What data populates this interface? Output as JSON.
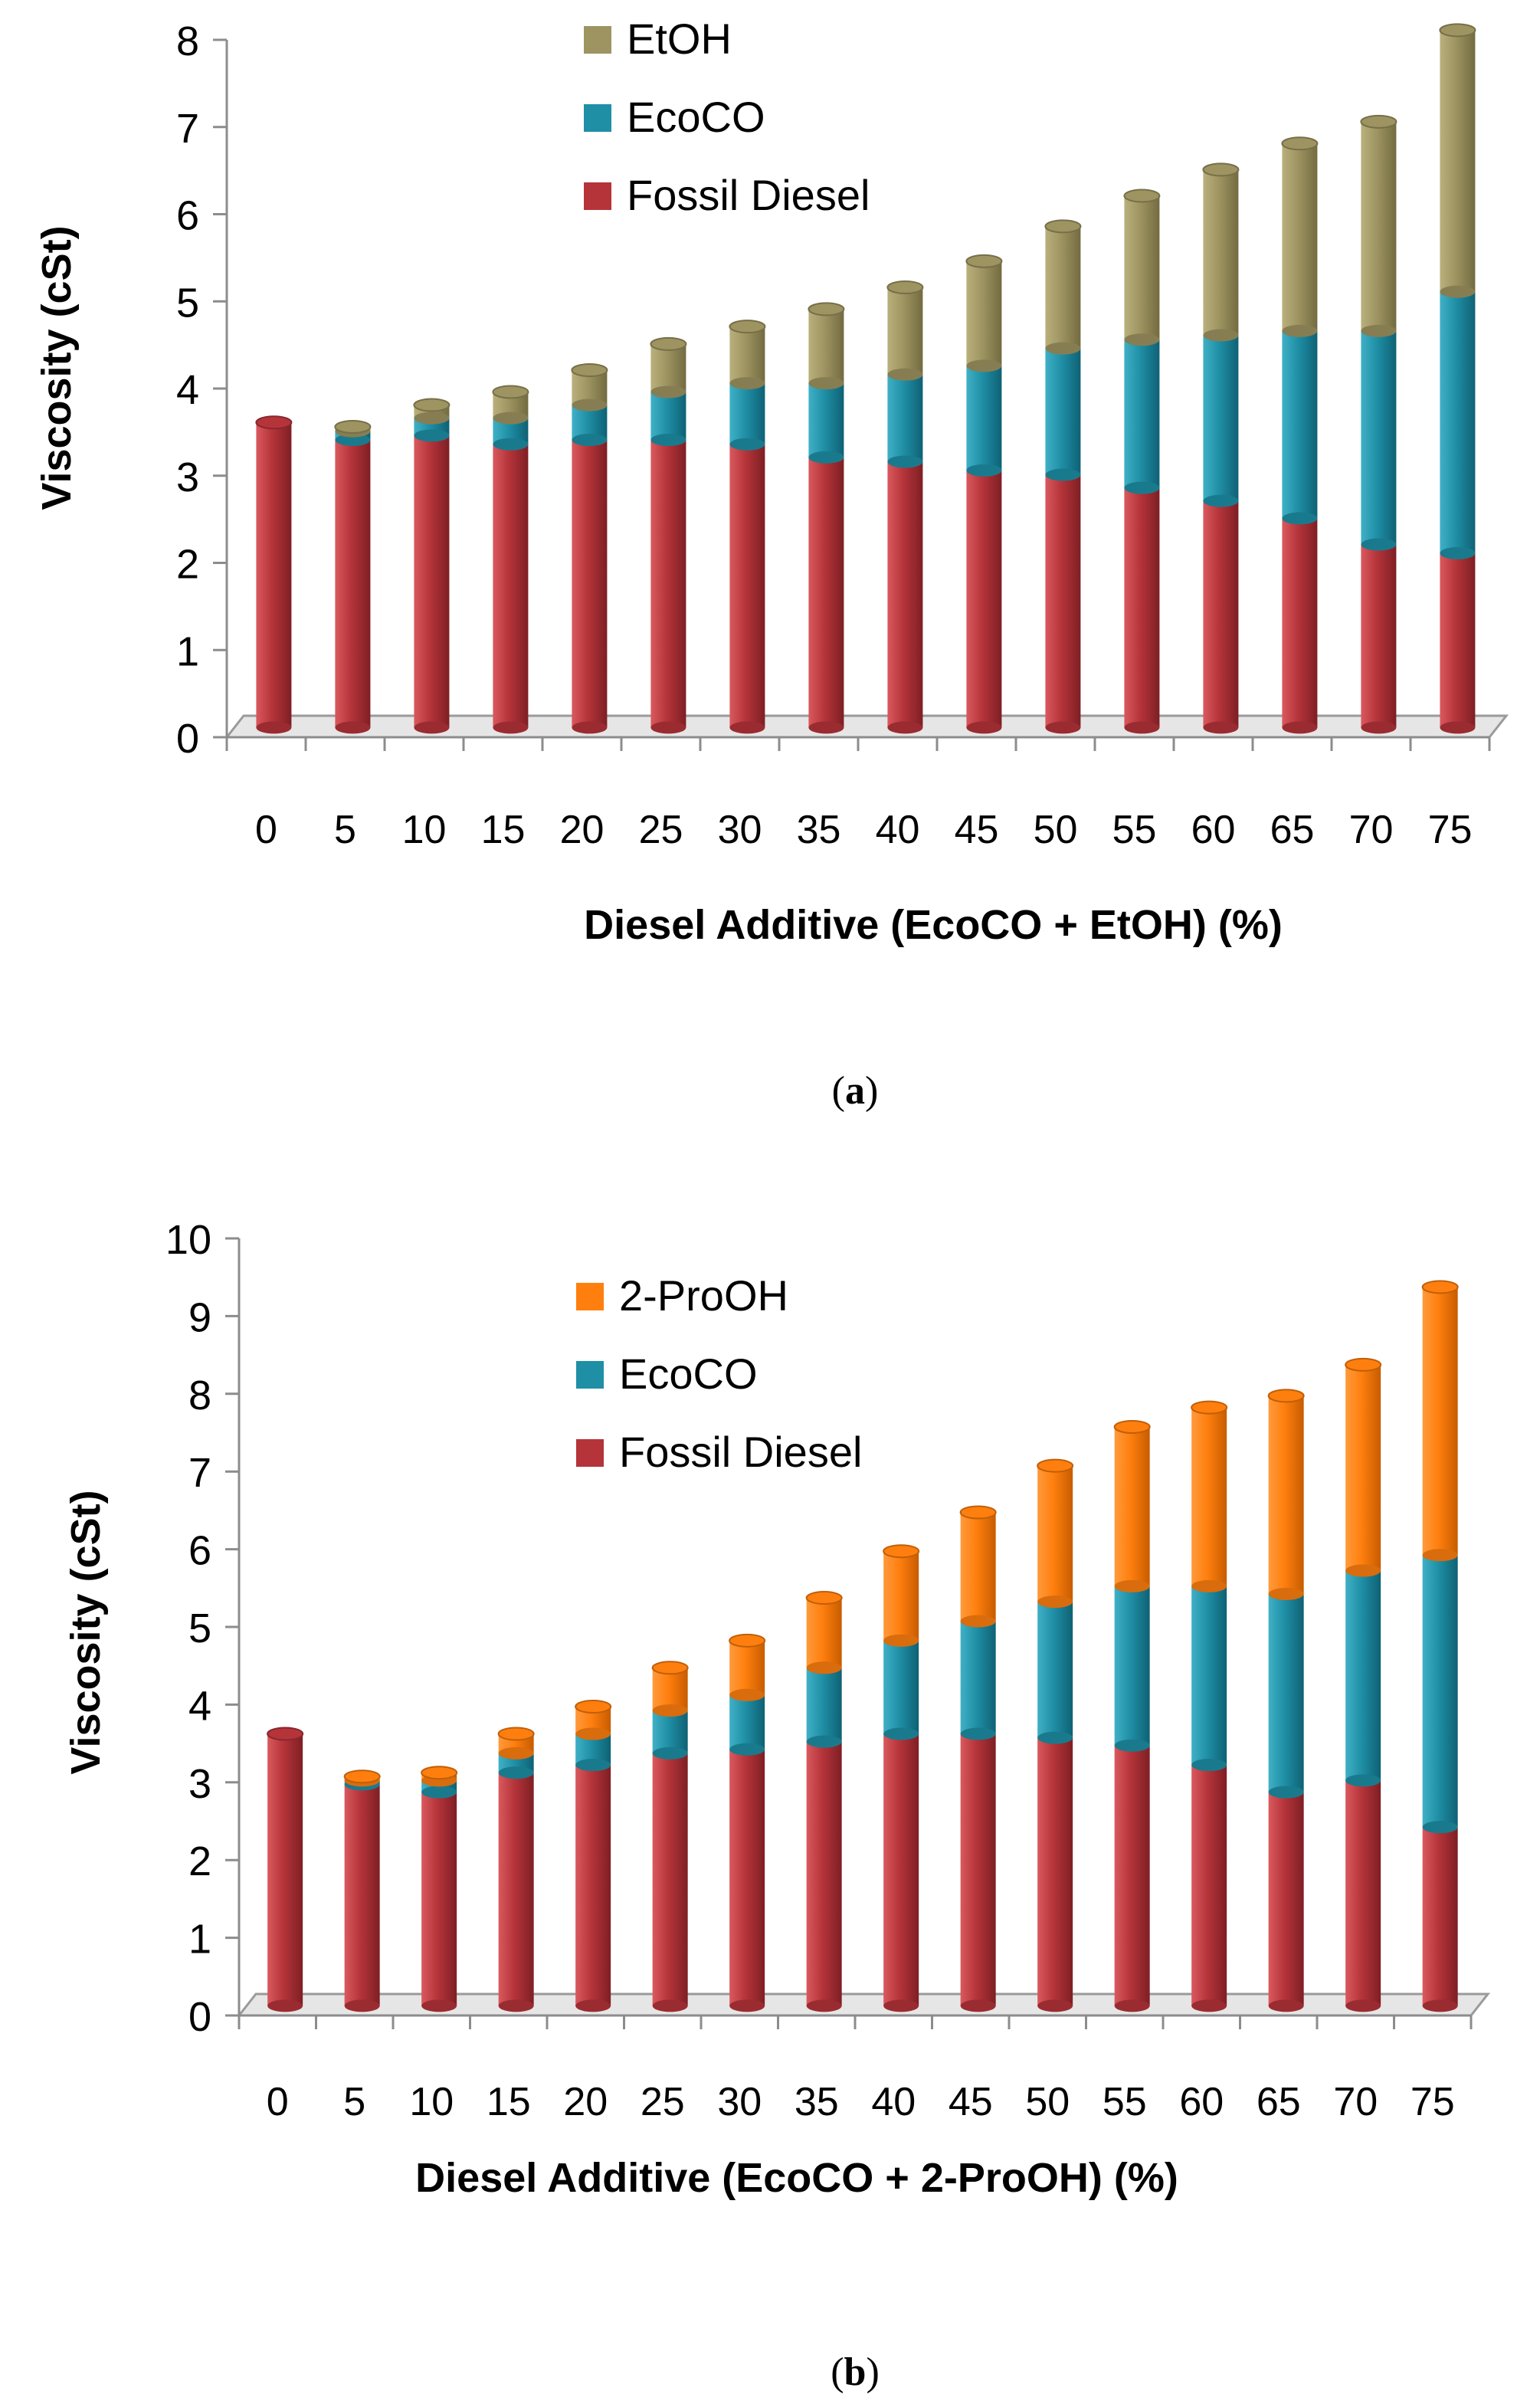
{
  "chart_data": [
    {
      "type": "bar",
      "stacked": true,
      "panel_label": "a",
      "title": "",
      "xlabel": "Diesel Additive (EcoCO + EtOH) (%)",
      "ylabel": "Viscosity (cSt)",
      "ylim": [
        0,
        8
      ],
      "yticks": [
        "0",
        "1",
        "2",
        "3",
        "4",
        "5",
        "6",
        "7",
        "8"
      ],
      "grid": false,
      "legend_position": "top-center",
      "categories": [
        "0",
        "5",
        "10",
        "15",
        "20",
        "25",
        "30",
        "35",
        "40",
        "45",
        "50",
        "55",
        "60",
        "65",
        "70",
        "75"
      ],
      "series": [
        {
          "name": "Fossil Diesel",
          "color": "#b5343a",
          "values": [
            3.5,
            3.3,
            3.35,
            3.25,
            3.3,
            3.3,
            3.25,
            3.1,
            3.05,
            2.95,
            2.9,
            2.75,
            2.6,
            2.4,
            2.1,
            2.0
          ]
        },
        {
          "name": "EcoCO",
          "color": "#1f8fa6",
          "values": [
            0.0,
            0.1,
            0.2,
            0.3,
            0.4,
            0.55,
            0.7,
            0.85,
            1.0,
            1.2,
            1.45,
            1.7,
            1.9,
            2.15,
            2.45,
            3.0
          ]
        },
        {
          "name": "EtOH",
          "color": "#9e9461",
          "values": [
            0.0,
            0.05,
            0.15,
            0.3,
            0.4,
            0.55,
            0.65,
            0.85,
            1.0,
            1.2,
            1.4,
            1.65,
            1.9,
            2.15,
            2.4,
            3.0
          ]
        }
      ]
    },
    {
      "type": "bar",
      "stacked": true,
      "panel_label": "b",
      "title": "",
      "xlabel": "Diesel Additive (EcoCO + 2-ProOH) (%)",
      "ylabel": "Viscosity (cSt)",
      "ylim": [
        0,
        10
      ],
      "yticks": [
        "0",
        "1",
        "2",
        "3",
        "4",
        "5",
        "6",
        "7",
        "8",
        "9",
        "10"
      ],
      "grid": false,
      "legend_position": "top-center",
      "categories": [
        "0",
        "5",
        "10",
        "15",
        "20",
        "25",
        "30",
        "35",
        "40",
        "45",
        "50",
        "55",
        "60",
        "65",
        "70",
        "75"
      ],
      "series": [
        {
          "name": "Fossil Diesel",
          "color": "#b5343a",
          "values": [
            3.5,
            2.85,
            2.75,
            3.0,
            3.1,
            3.25,
            3.3,
            3.4,
            3.5,
            3.5,
            3.45,
            3.35,
            3.1,
            2.75,
            2.9,
            2.3
          ]
        },
        {
          "name": "EcoCO",
          "color": "#1f8fa6",
          "values": [
            0.0,
            0.05,
            0.15,
            0.25,
            0.4,
            0.55,
            0.7,
            0.95,
            1.2,
            1.45,
            1.75,
            2.05,
            2.3,
            2.55,
            2.7,
            3.5
          ]
        },
        {
          "name": "2-ProOH",
          "color": "#ff7f0e",
          "values": [
            0.0,
            0.05,
            0.1,
            0.25,
            0.35,
            0.55,
            0.7,
            0.9,
            1.15,
            1.4,
            1.75,
            2.05,
            2.3,
            2.55,
            2.65,
            3.45
          ]
        }
      ]
    }
  ]
}
